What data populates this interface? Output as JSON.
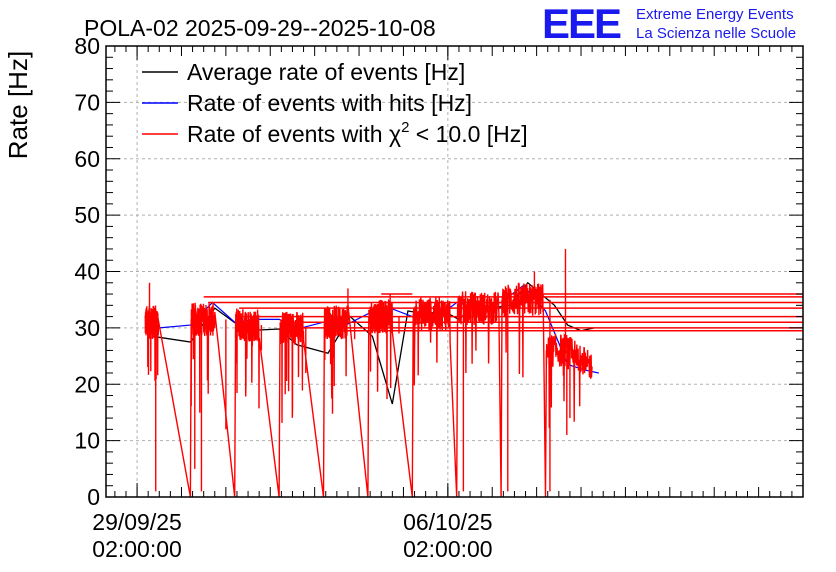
{
  "chart_data": {
    "type": "line",
    "title": "POLA-02 2025-09-29--2025-10-08",
    "ylabel": "Rate [Hz]",
    "xlabel": "",
    "ylim": [
      0,
      80
    ],
    "xlim_days": [
      -0.7,
      15.0
    ],
    "yticks": [
      0,
      10,
      20,
      30,
      40,
      50,
      60,
      70,
      80
    ],
    "xticks": [
      {
        "day": 0,
        "date": "29/09/25",
        "time": "02:00:00"
      },
      {
        "day": 7,
        "date": "06/10/25",
        "time": "02:00:00"
      }
    ],
    "grid": true,
    "logo": {
      "text": "EEE",
      "line1": "Extreme Energy Events",
      "line2": "La Scienza nelle Scuole",
      "color": "#1a1aee"
    },
    "legend": {
      "placement": "top-left",
      "entries": [
        {
          "label": "Average rate of events [Hz]",
          "color": "#000000"
        },
        {
          "label": "Rate of events with hits [Hz]",
          "color": "#0000ff"
        },
        {
          "label_prefix": "Rate of events with ",
          "label_symbol": "χ",
          "label_sup": "2",
          "label_suffix": " < 10.0 [Hz]",
          "color": "#ff0000"
        }
      ]
    },
    "series": [
      {
        "name": "Average rate of events [Hz]",
        "color": "#000000",
        "x": [
          0.35,
          1.2,
          1.75,
          2.45,
          3.2,
          3.6,
          4.3,
          4.8,
          5.3,
          5.75,
          6.1,
          6.5,
          6.9,
          7.25,
          7.6,
          8.0,
          8.4,
          8.8,
          9.4,
          9.7,
          10.0,
          10.3
        ],
        "y": [
          28.5,
          27.5,
          33.5,
          29.5,
          29.8,
          27.0,
          25.5,
          32.0,
          28.5,
          16.5,
          33.0,
          32.5,
          33.0,
          31.5,
          34.0,
          33.5,
          34.0,
          38.0,
          34.0,
          30.5,
          29.5,
          30.0
        ]
      },
      {
        "name": "Rate of events with hits [Hz]",
        "color": "#0000ff",
        "x": [
          0.22,
          0.5,
          1.2,
          1.7,
          2.2,
          2.7,
          3.2,
          3.7,
          4.2,
          4.7,
          5.2,
          5.7,
          6.2,
          6.7,
          7.2,
          7.7,
          8.2,
          8.7,
          9.2,
          9.7,
          10.1,
          10.4
        ],
        "y": [
          31.0,
          30.0,
          30.5,
          34.5,
          31.0,
          31.5,
          31.5,
          30.0,
          31.0,
          30.5,
          32.5,
          33.5,
          32.0,
          31.5,
          34.5,
          33.5,
          34.5,
          37.5,
          33.0,
          23.5,
          22.5,
          22.0
        ]
      },
      {
        "name": "Rate of events with χ2 < 10.0 [Hz]",
        "color": "#ff0000",
        "segments": [
          {
            "start": 0.18,
            "end": 0.48,
            "level": 31.0,
            "drop_to": 0,
            "drop_at": 1.2
          },
          {
            "start": 1.22,
            "end": 1.75,
            "level": 31.5,
            "drop_to": 0,
            "drop_at": 2.2
          },
          {
            "start": 2.22,
            "end": 2.75,
            "level": 30.5,
            "drop_to": 0,
            "drop_at": 3.2
          },
          {
            "start": 3.22,
            "end": 3.75,
            "level": 30.0,
            "drop_to": 0,
            "drop_at": 4.2
          },
          {
            "start": 4.22,
            "end": 4.75,
            "level": 31.0,
            "drop_to": 0,
            "drop_at": 5.2
          },
          {
            "start": 5.22,
            "end": 5.75,
            "level": 32.0,
            "drop_to": 0,
            "drop_at": 6.2
          },
          {
            "start": 6.22,
            "end": 7.05,
            "level": 32.5,
            "drop_to": 0,
            "drop_at": 7.2
          },
          {
            "start": 7.22,
            "end": 8.15,
            "level": 33.5,
            "drop_to": 0,
            "drop_at": 8.2
          },
          {
            "start": 8.22,
            "end": 9.15,
            "level": 35.0,
            "drop_to": 0,
            "drop_at": 9.2
          },
          {
            "start": 9.22,
            "end": 10.25,
            "level": 26.0,
            "drop_to": null,
            "drop_at": null
          }
        ],
        "horizontal_lines": [
          {
            "from": 1.5,
            "to": 15.0,
            "y": 35.5
          },
          {
            "from": 1.6,
            "to": 15.0,
            "y": 34.5
          },
          {
            "from": 2.3,
            "to": 15.0,
            "y": 33.5
          },
          {
            "from": 2.4,
            "to": 15.0,
            "y": 32.0
          },
          {
            "from": 3.3,
            "to": 15.0,
            "y": 31.0
          },
          {
            "from": 3.5,
            "to": 15.0,
            "y": 30.0
          },
          {
            "from": 4.4,
            "to": 15.0,
            "y": 29.5
          },
          {
            "from": 5.5,
            "to": 6.2,
            "y": 36.0
          },
          {
            "from": 8.3,
            "to": 15.0,
            "y": 36.0
          }
        ],
        "spikes": [
          {
            "x": 0.28,
            "y": 38.0
          },
          {
            "x": 0.42,
            "y": 1.0
          },
          {
            "x": 1.45,
            "y": 1.0
          },
          {
            "x": 1.3,
            "y": 5.0
          },
          {
            "x": 2.0,
            "y": 12.0
          },
          {
            "x": 2.8,
            "y": 26.0
          },
          {
            "x": 3.8,
            "y": 22.0
          },
          {
            "x": 4.9,
            "y": 28.0
          },
          {
            "x": 5.9,
            "y": 29.0
          },
          {
            "x": 7.35,
            "y": 1.0
          },
          {
            "x": 8.35,
            "y": 1.0
          },
          {
            "x": 9.3,
            "y": 1.0
          },
          {
            "x": 9.65,
            "y": 44.0
          },
          {
            "x": 9.68,
            "y": 11.0
          },
          {
            "x": 9.75,
            "y": 14.0
          },
          {
            "x": 8.95,
            "y": 40.0
          },
          {
            "x": 4.75,
            "y": 37.0
          },
          {
            "x": 5.7,
            "y": 36.0
          }
        ]
      }
    ]
  }
}
